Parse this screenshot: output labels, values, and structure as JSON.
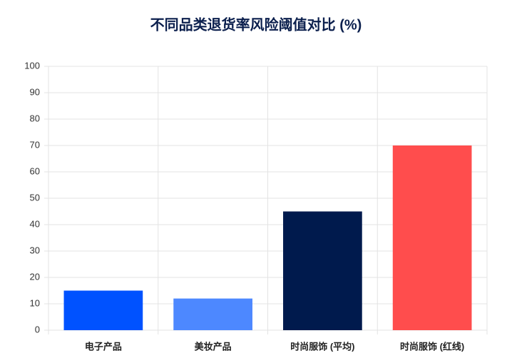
{
  "chart_data": {
    "type": "bar",
    "title": "不同品类退货率风险阈值对比 (%)",
    "categories": [
      "电子产品",
      "美妆产品",
      "时尚服饰 (平均)",
      "时尚服饰 (红线)"
    ],
    "values": [
      15,
      12,
      45,
      70
    ],
    "colors": [
      "#0052ff",
      "#4d88ff",
      "#001a4d",
      "#ff4d4d"
    ],
    "ylim": [
      0,
      100
    ],
    "yticks": [
      0,
      10,
      20,
      30,
      40,
      50,
      60,
      70,
      80,
      90,
      100
    ],
    "grid": true
  }
}
